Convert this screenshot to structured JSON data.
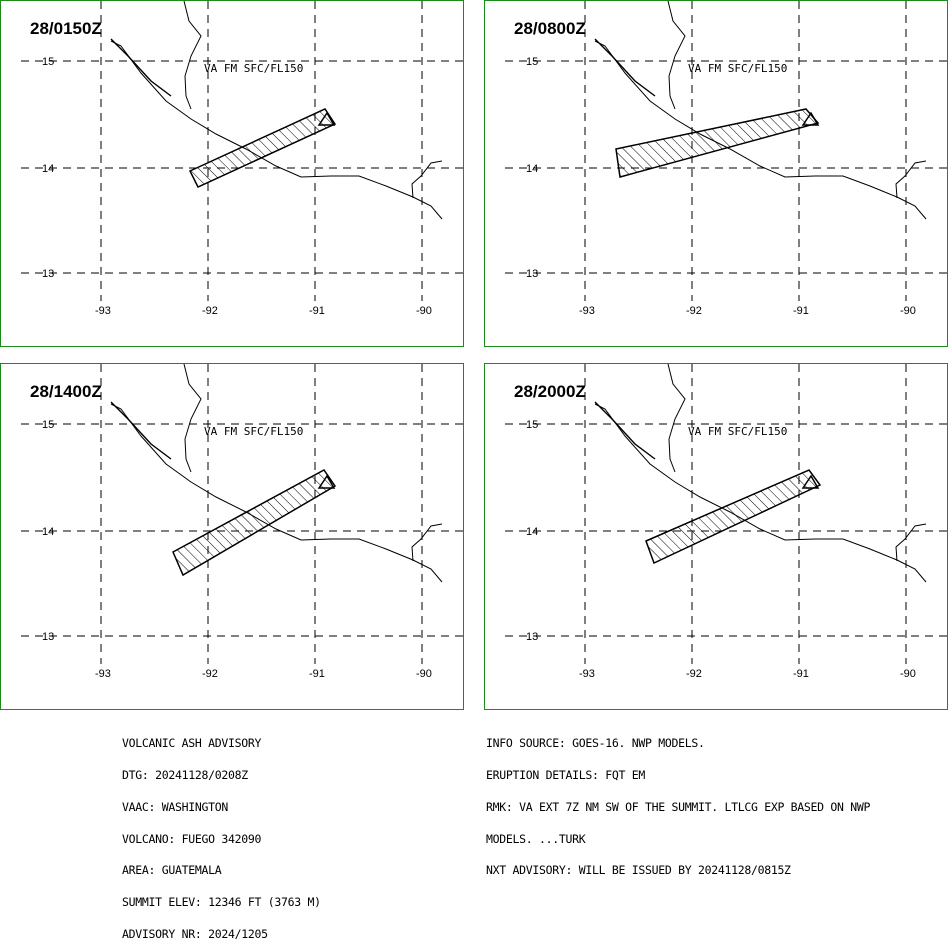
{
  "panels": [
    {
      "time": "28/0150Z",
      "label": "VA FM SFC/FL150"
    },
    {
      "time": "28/0800Z",
      "label": "VA FM SFC/FL150"
    },
    {
      "time": "28/1400Z",
      "label": "VA FM SFC/FL150"
    },
    {
      "time": "28/2000Z",
      "label": "VA FM SFC/FL150"
    }
  ],
  "lat_labels": [
    "15",
    "14",
    "13"
  ],
  "lon_labels": [
    "-93",
    "-92",
    "-91",
    "-90"
  ],
  "advisory_left": [
    "VOLCANIC ASH ADVISORY",
    "DTG: 20241128/0208Z",
    "VAAC: WASHINGTON",
    "VOLCANO: FUEGO 342090",
    "AREA: GUATEMALA",
    "SUMMIT ELEV: 12346 FT (3763 M)",
    "ADVISORY NR: 2024/1205"
  ],
  "advisory_right": [
    "INFO SOURCE: GOES-16. NWP MODELS.",
    "ERUPTION DETAILS: FQT EM",
    "RMK: VA EXT 7Z NM SW OF THE SUMMIT. LTLCG EXP BASED ON NWP",
    "MODELS. ...TURK",
    "NXT ADVISORY: WILL BE ISSUED BY 20241128/0815Z"
  ],
  "colors": {
    "border": "#1a8a1a",
    "lines": "#000000"
  }
}
